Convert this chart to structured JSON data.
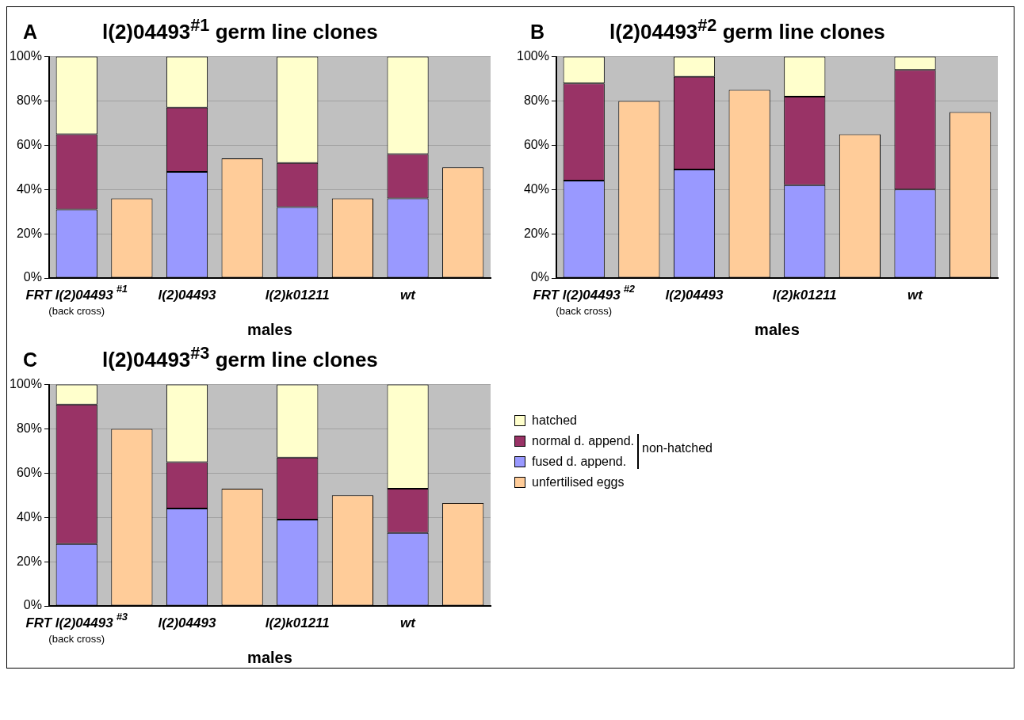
{
  "chart_data": [
    {
      "type": "bar",
      "title": "l(2)04493$^{#1}$ germ line clones",
      "annotations": [
        "A"
      ],
      "xlabel": "males",
      "categories": [
        "FRT l(2)04493$^{#1}$\n(back cross)",
        null,
        "l(2)04493",
        null,
        "l(2)k01211",
        null,
        "wt",
        null
      ],
      "stacked": true,
      "ylim": [
        0,
        100
      ],
      "yticks": [
        {
          "value": 0,
          "label": "0%"
        },
        {
          "value": 20,
          "label": "20%"
        },
        {
          "value": 40,
          "label": "40%"
        },
        {
          "value": 60,
          "label": "60%"
        },
        {
          "value": 80,
          "label": "80%"
        },
        {
          "value": 100,
          "label": "100%"
        }
      ],
      "grid": "y",
      "legend": false,
      "series": [
        {
          "color": "#9999ff",
          "values": [
            31,
            null,
            48,
            null,
            32,
            null,
            36,
            null
          ]
        },
        {
          "color": "#993366",
          "values": [
            34,
            null,
            29,
            null,
            20,
            null,
            20,
            null
          ]
        },
        {
          "color": "#ffffcc",
          "values": [
            35,
            null,
            23,
            null,
            48,
            null,
            44,
            null
          ]
        },
        {
          "color": "#ffcc99",
          "values": [
            null,
            36,
            null,
            54,
            null,
            36,
            null,
            50
          ]
        }
      ]
    },
    {
      "type": "bar",
      "title": "l(2)04493$^{#2}$ germ line clones",
      "annotations": [
        "B"
      ],
      "xlabel": "males",
      "categories": [
        "FRT l(2)04493$^{#2}$\n(back cross)",
        null,
        "l(2)04493",
        null,
        "l(2)k01211",
        null,
        "wt",
        null
      ],
      "stacked": true,
      "ylim": [
        0,
        100
      ],
      "yticks": [
        {
          "value": 0,
          "label": "0%"
        },
        {
          "value": 20,
          "label": "20%"
        },
        {
          "value": 40,
          "label": "40%"
        },
        {
          "value": 60,
          "label": "60%"
        },
        {
          "value": 80,
          "label": "80%"
        },
        {
          "value": 100,
          "label": "100%"
        }
      ],
      "grid": "y",
      "legend": false,
      "series": [
        {
          "color": "#9999ff",
          "values": [
            44,
            null,
            49,
            null,
            42,
            null,
            40,
            null
          ]
        },
        {
          "color": "#993366",
          "values": [
            44,
            null,
            42,
            null,
            40,
            null,
            54,
            null
          ]
        },
        {
          "color": "#ffffcc",
          "values": [
            12,
            null,
            9,
            null,
            18,
            null,
            6,
            null
          ]
        },
        {
          "color": "#ffcc99",
          "values": [
            null,
            80,
            null,
            85,
            null,
            65,
            null,
            75
          ]
        }
      ]
    },
    {
      "type": "bar",
      "title": "l(2)04493$^{#3}$ germ line clones",
      "annotations": [
        "C",
        "non-hatched"
      ],
      "xlabel": "males",
      "categories": [
        "FRT l(2)04493$^{#3}$\n(back cross)",
        null,
        "l(2)04493",
        null,
        "l(2)k01211",
        null,
        "wt",
        null
      ],
      "stacked": true,
      "ylim": [
        0,
        100
      ],
      "yticks": [
        {
          "value": 0,
          "label": "0%"
        },
        {
          "value": 20,
          "label": "20%"
        },
        {
          "value": 40,
          "label": "40%"
        },
        {
          "value": 60,
          "label": "60%"
        },
        {
          "value": 80,
          "label": "80%"
        },
        {
          "value": 100,
          "label": "100%"
        }
      ],
      "grid": "y",
      "legend": "right",
      "series": [
        {
          "name": "fused d. append.",
          "color": "#9999ff",
          "values": [
            28,
            null,
            44,
            null,
            39,
            null,
            33,
            null
          ]
        },
        {
          "name": "normal d. append.",
          "color": "#993366",
          "values": [
            63,
            null,
            21,
            null,
            28,
            null,
            20,
            null
          ]
        },
        {
          "name": "hatched",
          "color": "#ffffcc",
          "values": [
            9,
            null,
            35,
            null,
            33,
            null,
            47,
            null
          ]
        },
        {
          "name": "unfertilised eggs",
          "color": "#ffcc99",
          "values": [
            null,
            80,
            null,
            53,
            null,
            50,
            null,
            46.5
          ]
        }
      ]
    }
  ]
}
